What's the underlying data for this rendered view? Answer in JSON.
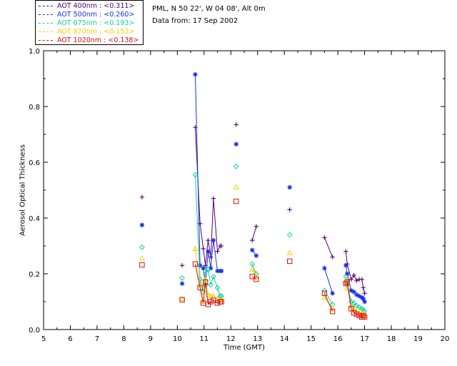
{
  "chart_data": {
    "type": "scatter",
    "title": "",
    "info_lines": [
      "PML, N 50 22', W 04 08', Alt 0m",
      "Data from: 17 Sep 2002"
    ],
    "xlabel": "Time (GMT)",
    "ylabel": "Aerosol Optical Thickness",
    "xlim": [
      5,
      20
    ],
    "ylim": [
      0,
      1.0
    ],
    "xticks": [
      "5",
      "6",
      "7",
      "8",
      "9",
      "10",
      "11",
      "12",
      "13",
      "14",
      "15",
      "16",
      "17",
      "18",
      "19",
      "20"
    ],
    "yticks": [
      "0.0",
      "0.2",
      "0.4",
      "0.6",
      "0.8",
      "1.0"
    ],
    "x": [
      8.68,
      10.18,
      10.67,
      10.85,
      10.97,
      11.05,
      11.15,
      11.25,
      11.35,
      11.5,
      11.6,
      11.65,
      12.2,
      12.8,
      12.95,
      14.2,
      15.5,
      15.8,
      16.3,
      16.35,
      16.5,
      16.6,
      16.7,
      16.8,
      16.9,
      16.95,
      17.0
    ],
    "series": [
      {
        "name": "AOT 400nm",
        "legend": "AOT  400nm : <0.311>",
        "color": "#5a0070",
        "marker": "plus",
        "values": [
          0.475,
          0.23,
          0.725,
          0.38,
          0.29,
          0.23,
          0.32,
          0.26,
          0.47,
          0.28,
          0.3,
          0.3,
          0.735,
          0.32,
          0.37,
          0.43,
          0.33,
          0.26,
          0.28,
          0.235,
          0.18,
          0.195,
          0.175,
          0.18,
          0.18,
          0.15,
          0.13
        ]
      },
      {
        "name": "AOT 500nm",
        "legend": "AOT  500nm : <0.260>",
        "color": "#1830e0",
        "marker": "star",
        "values": [
          0.375,
          0.165,
          0.915,
          0.23,
          0.22,
          0.16,
          0.28,
          0.22,
          0.32,
          0.21,
          0.21,
          0.21,
          0.665,
          0.285,
          0.265,
          0.51,
          0.22,
          0.13,
          0.23,
          0.2,
          0.14,
          0.135,
          0.125,
          0.12,
          0.115,
          0.11,
          0.1
        ]
      },
      {
        "name": "AOT 675nm",
        "legend": "AOT  675nm : <0.193>",
        "color": "#10d0a0",
        "marker": "diamond",
        "values": [
          0.295,
          0.185,
          0.555,
          0.18,
          0.135,
          0.21,
          0.215,
          0.16,
          0.19,
          0.15,
          0.12,
          0.12,
          0.585,
          0.235,
          0.2,
          0.34,
          0.14,
          0.09,
          0.19,
          0.16,
          0.1,
          0.095,
          0.085,
          0.08,
          0.075,
          0.07,
          0.065
        ]
      },
      {
        "name": "AOT 870nm",
        "legend": "AOT  870nm : <0.152>",
        "color": "#f0d000",
        "marker": "triangle",
        "values": [
          0.255,
          0.11,
          0.29,
          0.16,
          0.1,
          0.18,
          0.125,
          0.12,
          0.12,
          0.11,
          0.105,
          0.105,
          0.51,
          0.215,
          0.19,
          0.275,
          0.115,
          0.075,
          0.175,
          0.15,
          0.085,
          0.07,
          0.065,
          0.06,
          0.06,
          0.055,
          0.05
        ]
      },
      {
        "name": "AOT 1020nm",
        "legend": "AOT 1020nm : <0.138>",
        "color": "#d81010",
        "marker": "square",
        "values": [
          0.232,
          0.107,
          0.235,
          0.15,
          0.095,
          0.17,
          0.09,
          0.1,
          0.105,
          0.095,
          0.1,
          0.1,
          0.46,
          0.19,
          0.18,
          0.245,
          0.13,
          0.065,
          0.165,
          0.17,
          0.075,
          0.06,
          0.055,
          0.05,
          0.045,
          0.05,
          0.045
        ]
      }
    ]
  }
}
